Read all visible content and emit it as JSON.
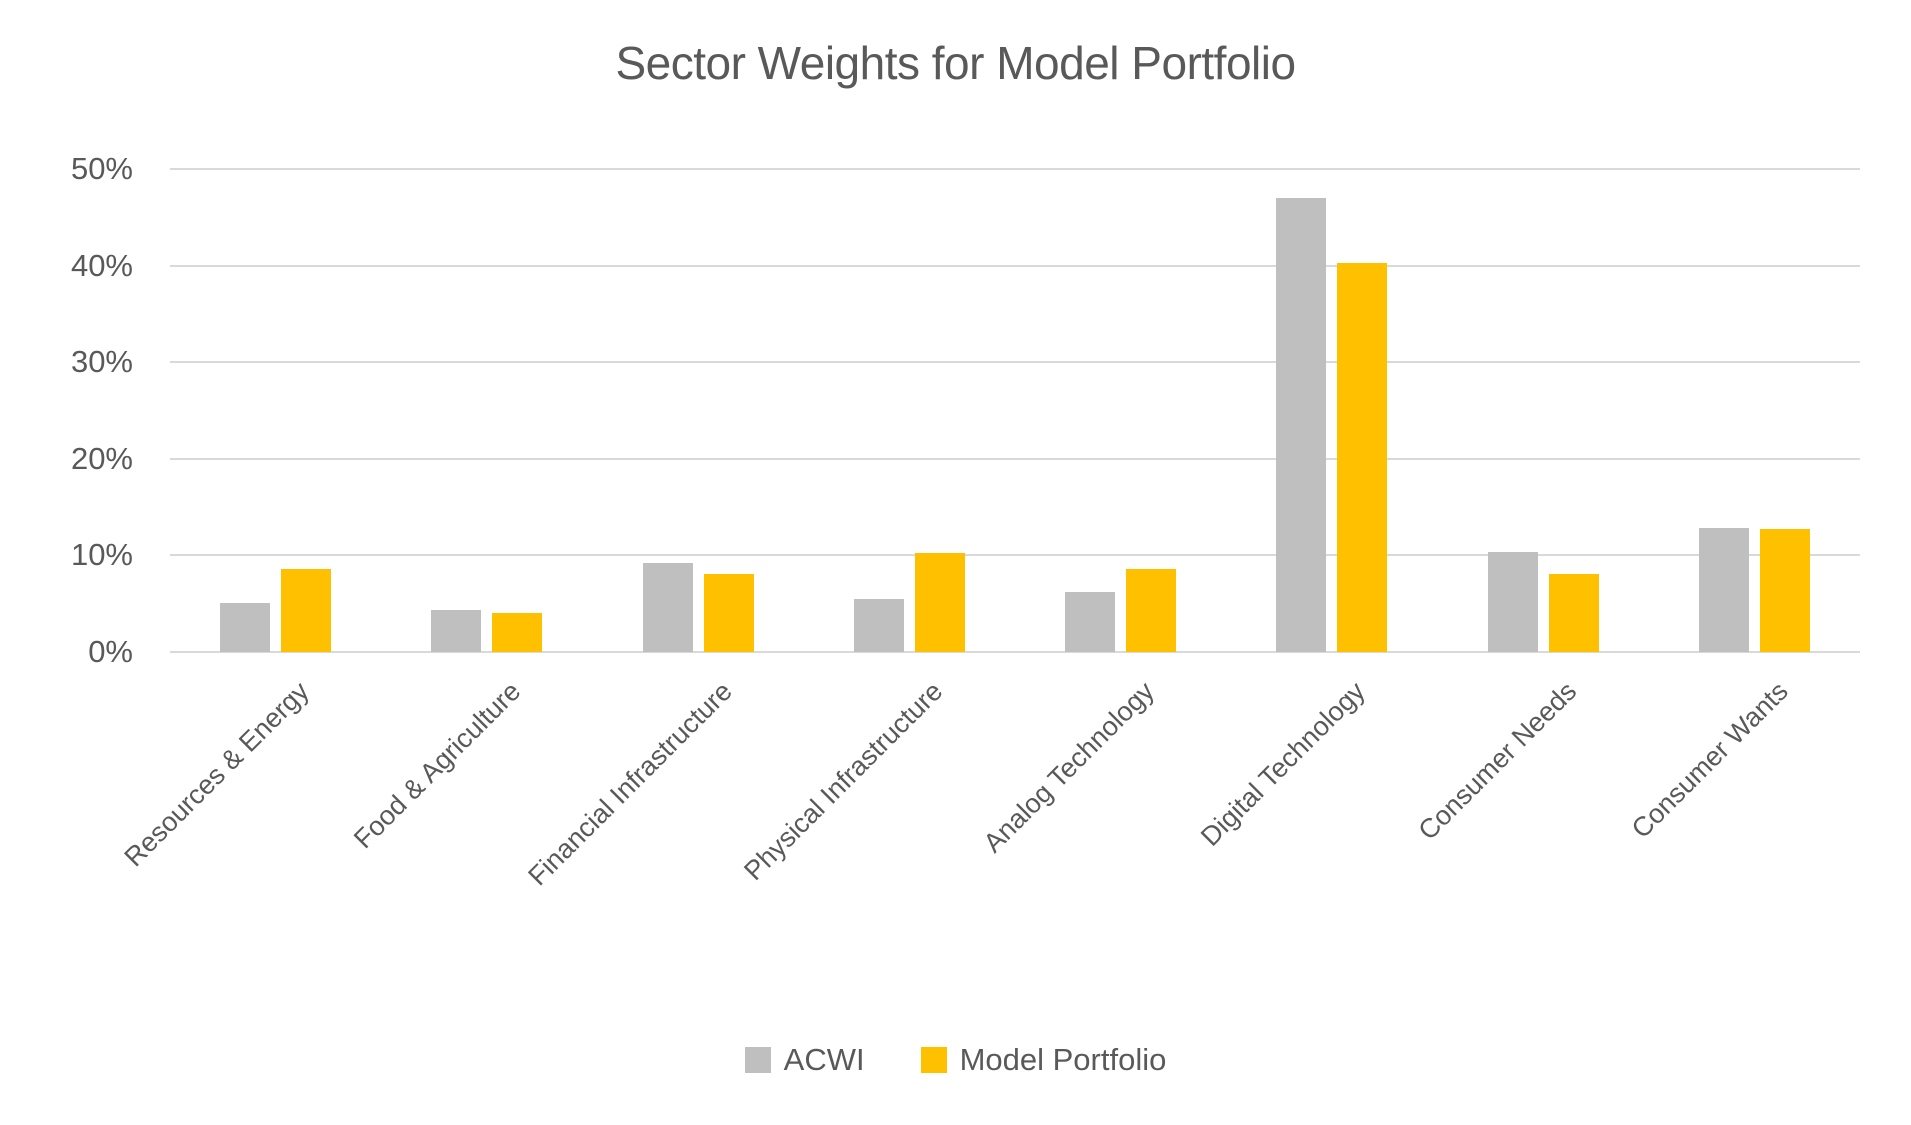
{
  "title": "Sector Weights for Model Portfolio",
  "chart_data": {
    "type": "bar",
    "title": "Sector Weights for Model Portfolio",
    "categories": [
      "Resources & Energy",
      "Food & Agriculture",
      "Financial Infrastructure",
      "Physical Infrastructure",
      "Analog Technology",
      "Digital Technology",
      "Consumer Needs",
      "Consumer Wants"
    ],
    "series": [
      {
        "name": "ACWI",
        "color": "#BFBFBF",
        "values": [
          5.1,
          4.3,
          9.2,
          5.5,
          6.2,
          47.0,
          10.4,
          12.8
        ]
      },
      {
        "name": "Model Portfolio",
        "color": "#FFC000",
        "values": [
          8.6,
          4.0,
          8.1,
          10.3,
          8.6,
          40.3,
          8.1,
          12.7
        ]
      }
    ],
    "xlabel": "",
    "ylabel": "",
    "ylim": [
      0,
      50
    ],
    "yticks": [
      "0%",
      "10%",
      "20%",
      "30%",
      "40%",
      "50%"
    ],
    "grid": true,
    "legend_position": "bottom",
    "colors": {
      "text": "#595959",
      "gridline": "#D9D9D9",
      "background": "#FFFFFF"
    }
  }
}
